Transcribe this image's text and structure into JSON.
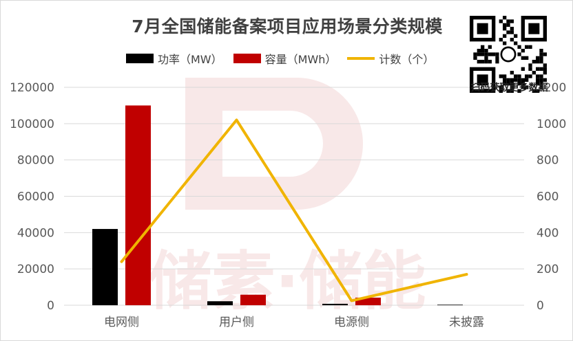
{
  "title": "7月全国储能备案项目应用场景分类规模",
  "watermark": {
    "text": "储素·储能",
    "color": "#f3d6d6"
  },
  "qr": {
    "caption": "扫码获取更多数据"
  },
  "legend": [
    {
      "label": "功率（MW）",
      "color": "#000000",
      "type": "bar"
    },
    {
      "label": "容量（MWh）",
      "color": "#c00000",
      "type": "bar"
    },
    {
      "label": "计数（个）",
      "color": "#f0b400",
      "type": "line"
    }
  ],
  "chart_data": {
    "type": "bar",
    "categories": [
      "电网侧",
      "用户侧",
      "电源侧",
      "未披露"
    ],
    "series": [
      {
        "name": "功率（MW）",
        "type": "bar",
        "axis": "left",
        "color": "#000000",
        "values": [
          42000,
          2200,
          800,
          300
        ]
      },
      {
        "name": "容量（MWh）",
        "type": "bar",
        "axis": "left",
        "color": "#c00000",
        "values": [
          110000,
          5800,
          4200,
          0
        ]
      },
      {
        "name": "计数（个）",
        "type": "line",
        "axis": "right",
        "color": "#f0b400",
        "values": [
          240,
          1020,
          25,
          170
        ]
      }
    ],
    "ylim_left": [
      0,
      120000
    ],
    "yticks_left": [
      "0",
      "20000",
      "40000",
      "60000",
      "80000",
      "100000",
      "120000"
    ],
    "ylim_right": [
      0,
      1200
    ],
    "yticks_right": [
      "0",
      "200",
      "400",
      "600",
      "800",
      "1000",
      "1200"
    ],
    "grid": true,
    "legend_position": "top"
  }
}
